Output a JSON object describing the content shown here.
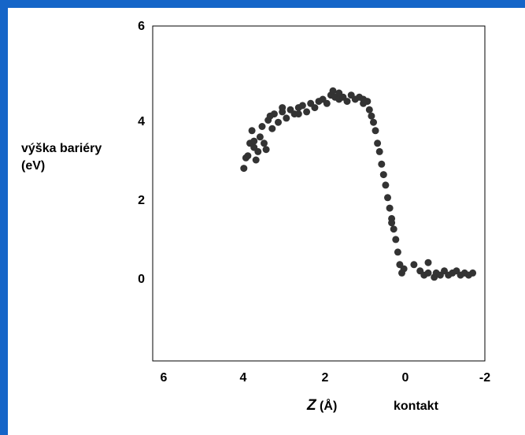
{
  "chart_data": {
    "type": "scatter",
    "title": "",
    "ylabel_lines": [
      "výška bariéry",
      "(eV)"
    ],
    "xlabel_var": "Z",
    "xlabel_unit": " (Å)",
    "x_extra_label": "kontakt",
    "xlim": [
      6.2,
      -2.0
    ],
    "ylim": [
      -2.0,
      6.0
    ],
    "x_ticks": [
      "6",
      "4",
      "2",
      "0",
      "-2"
    ],
    "y_ticks": [
      "6",
      "4",
      "2",
      "0"
    ],
    "grid": false,
    "legend": "none",
    "point_color": "#333333",
    "points": [
      [
        3.95,
        2.6
      ],
      [
        3.9,
        2.85
      ],
      [
        3.85,
        2.9
      ],
      [
        3.8,
        3.2
      ],
      [
        3.75,
        3.5
      ],
      [
        3.7,
        3.1
      ],
      [
        3.65,
        2.8
      ],
      [
        3.6,
        3.0
      ],
      [
        3.55,
        3.35
      ],
      [
        3.5,
        3.6
      ],
      [
        3.45,
        3.2
      ],
      [
        3.4,
        3.05
      ],
      [
        3.35,
        3.75
      ],
      [
        3.3,
        3.85
      ],
      [
        3.25,
        3.55
      ],
      [
        3.2,
        3.9
      ],
      [
        3.1,
        3.7
      ],
      [
        3.0,
        3.95
      ],
      [
        2.9,
        3.8
      ],
      [
        2.8,
        4.0
      ],
      [
        2.7,
        3.9
      ],
      [
        2.6,
        4.05
      ],
      [
        2.5,
        4.1
      ],
      [
        2.4,
        3.95
      ],
      [
        2.3,
        4.15
      ],
      [
        2.2,
        4.05
      ],
      [
        2.1,
        4.2
      ],
      [
        2.0,
        4.25
      ],
      [
        1.9,
        4.15
      ],
      [
        1.8,
        4.35
      ],
      [
        1.75,
        4.45
      ],
      [
        1.7,
        4.3
      ],
      [
        1.6,
        4.25
      ],
      [
        1.5,
        4.3
      ],
      [
        1.4,
        4.2
      ],
      [
        1.3,
        4.35
      ],
      [
        1.2,
        4.25
      ],
      [
        1.1,
        4.3
      ],
      [
        1.0,
        4.15
      ],
      [
        0.9,
        4.2
      ],
      [
        0.85,
        4.0
      ],
      [
        0.8,
        3.85
      ],
      [
        0.75,
        3.7
      ],
      [
        0.7,
        3.5
      ],
      [
        0.65,
        3.2
      ],
      [
        0.6,
        3.0
      ],
      [
        0.55,
        2.7
      ],
      [
        0.5,
        2.45
      ],
      [
        0.45,
        2.2
      ],
      [
        0.4,
        1.9
      ],
      [
        0.35,
        1.65
      ],
      [
        0.3,
        1.4
      ],
      [
        0.25,
        1.15
      ],
      [
        0.2,
        0.9
      ],
      [
        0.15,
        0.6
      ],
      [
        0.1,
        0.3
      ],
      [
        0.05,
        0.1
      ],
      [
        0.0,
        0.2
      ],
      [
        -0.25,
        0.3
      ],
      [
        -0.4,
        0.15
      ],
      [
        -0.5,
        0.05
      ],
      [
        -0.6,
        0.1
      ],
      [
        -0.75,
        0.0
      ],
      [
        -0.8,
        0.1
      ],
      [
        -0.9,
        0.05
      ],
      [
        -1.0,
        0.15
      ],
      [
        -1.1,
        0.05
      ],
      [
        -1.2,
        0.1
      ],
      [
        -1.3,
        0.15
      ],
      [
        -1.4,
        0.05
      ],
      [
        -1.5,
        0.1
      ],
      [
        -1.6,
        0.05
      ],
      [
        -1.7,
        0.1
      ],
      [
        -0.6,
        0.35
      ],
      [
        1.0,
        4.25
      ],
      [
        1.6,
        4.4
      ],
      [
        2.6,
        3.9
      ],
      [
        3.0,
        4.05
      ],
      [
        3.7,
        3.25
      ],
      [
        0.3,
        1.3
      ]
    ]
  }
}
